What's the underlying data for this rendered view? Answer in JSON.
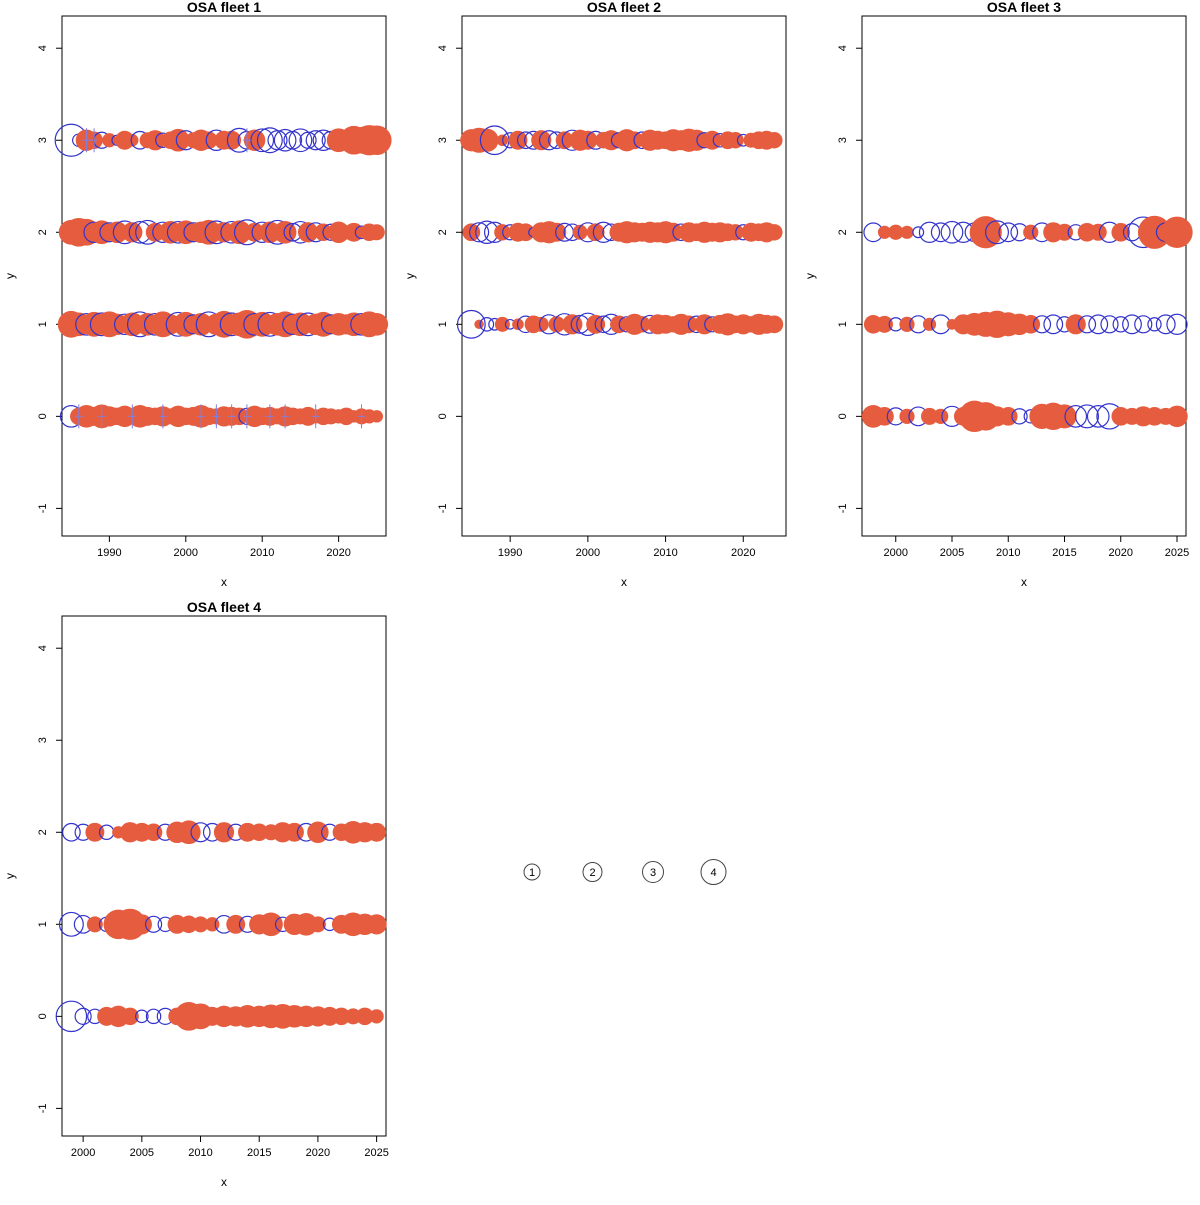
{
  "figure": {
    "background": "#ffffff",
    "colors": {
      "positive_fill": "#e65c3e",
      "negative_stroke": "#3333cc",
      "cross_color": "#8080e0",
      "axis_color": "#000000",
      "legend_stroke": "#444444"
    }
  },
  "chart_data": {
    "type": "scatter",
    "description": "Bubble plots of OSA residuals by fleet; filled circles positive residuals, open circles negative residuals; bubble area proportional to magnitude",
    "legend": {
      "items": [
        {
          "label": "1",
          "r": 8
        },
        {
          "label": "2",
          "r": 9.5
        },
        {
          "label": "3",
          "r": 10.5
        },
        {
          "label": "4",
          "r": 12.5
        }
      ]
    },
    "panels": [
      {
        "name": "osa-fleet-1",
        "title": "OSA fleet 1",
        "xlabel": "x",
        "ylabel": "y",
        "xlim": [
          1983.8,
          2026.2
        ],
        "xticks": [
          1990,
          2000,
          2010,
          2020
        ],
        "ylim": [
          -1.3,
          4.35
        ],
        "yticks": [
          -1,
          0,
          1,
          2,
          3,
          4
        ],
        "start_year": 1985,
        "max_radius": 16,
        "rows": [
          {
            "y": 3,
            "values": [
              -1.0,
              -0.15,
              0.45,
              0.3,
              -0.25,
              0.2,
              -0.1,
              0.35,
              0.15,
              -0.3,
              0.25,
              0.4,
              -0.2,
              0.3,
              0.5,
              -0.35,
              0.25,
              0.45,
              0.3,
              -0.4,
              0.35,
              0.35,
              -0.55,
              -0.3,
              0.45,
              -0.5,
              -0.6,
              -0.35,
              -0.45,
              -0.3,
              -0.5,
              -0.25,
              -0.35,
              -0.4,
              -0.3,
              0.55,
              0.4,
              0.8,
              0.7,
              0.9,
              0.85
            ],
            "crosses": [
              1987,
              1988,
              2008
            ]
          },
          {
            "y": 2,
            "values": [
              0.6,
              0.8,
              0.7,
              -0.4,
              0.55,
              -0.35,
              0.45,
              -0.5,
              0.4,
              -0.45,
              -0.55,
              0.35,
              -0.4,
              0.5,
              -0.45,
              0.55,
              -0.35,
              0.45,
              0.6,
              -0.5,
              0.4,
              -0.45,
              0.55,
              -0.6,
              0.35,
              -0.4,
              0.45,
              -0.55,
              0.5,
              -0.3,
              -0.45,
              0.4,
              -0.35,
              0.3,
              -0.25,
              0.45,
              0.2,
              0.35,
              -0.15,
              0.3,
              0.25
            ]
          },
          {
            "y": 1,
            "values": [
              0.7,
              0.55,
              -0.45,
              0.6,
              -0.5,
              0.65,
              0.45,
              -0.4,
              0.55,
              -0.6,
              0.5,
              -0.45,
              0.65,
              0.4,
              -0.55,
              0.6,
              -0.35,
              0.5,
              -0.6,
              0.45,
              0.7,
              -0.5,
              0.55,
              0.8,
              -0.45,
              0.6,
              -0.55,
              0.5,
              0.65,
              -0.4,
              0.55,
              -0.5,
              0.45,
              0.6,
              -0.35,
              0.5,
              0.4,
              0.55,
              -0.45,
              0.65,
              0.5
            ]
          },
          {
            "y": 0,
            "values": [
              -0.45,
              0.3,
              0.5,
              0.35,
              0.55,
              0.4,
              0.3,
              0.45,
              0.25,
              0.5,
              0.35,
              0.3,
              0.4,
              0.25,
              0.45,
              0.3,
              0.35,
              0.5,
              0.3,
              0.25,
              0.4,
              0.35,
              0.3,
              -0.25,
              0.45,
              0.3,
              0.35,
              0.25,
              0.4,
              0.3,
              0.25,
              0.35,
              0.2,
              0.3,
              0.25,
              0.2,
              0.3,
              0.15,
              0.25,
              0.2,
              0.15
            ],
            "crosses": [
              1986,
              1989,
              1993,
              1997,
              2002,
              2004,
              2006,
              2008,
              2011,
              2013,
              2017,
              2023
            ]
          }
        ]
      },
      {
        "name": "osa-fleet-2",
        "title": "OSA fleet 2",
        "xlabel": "x",
        "ylabel": "y",
        "xlim": [
          1983.8,
          2025.5
        ],
        "xticks": [
          1990,
          2000,
          2010,
          2020
        ],
        "ylim": [
          -1.3,
          4.35
        ],
        "yticks": [
          -1,
          0,
          1,
          2,
          3,
          4
        ],
        "start_year": 1985,
        "max_radius": 15,
        "rows": [
          {
            "y": 3,
            "values": [
              0.55,
              0.7,
              0.6,
              -0.9,
              0.15,
              -0.25,
              0.4,
              -0.3,
              -0.35,
              0.45,
              -0.4,
              -0.3,
              0.35,
              -0.45,
              0.5,
              0.4,
              -0.35,
              0.3,
              0.45,
              -0.25,
              0.55,
              0.35,
              -0.3,
              0.5,
              0.4,
              0.35,
              0.55,
              0.45,
              0.6,
              0.5,
              -0.25,
              0.4,
              -0.2,
              0.35,
              0.3,
              -0.15,
              0.25,
              0.35,
              0.4,
              0.3
            ]
          },
          {
            "y": 2,
            "values": [
              0.35,
              -0.4,
              -0.55,
              -0.45,
              0.3,
              -0.25,
              0.4,
              0.35,
              -0.1,
              0.45,
              0.55,
              0.4,
              -0.35,
              -0.3,
              0.25,
              -0.4,
              0.35,
              -0.45,
              -0.3,
              0.4,
              0.55,
              0.45,
              0.4,
              0.5,
              0.45,
              0.55,
              0.4,
              -0.3,
              0.45,
              0.35,
              0.5,
              0.4,
              0.45,
              0.35,
              0.3,
              -0.25,
              0.4,
              0.35,
              0.45,
              0.3
            ]
          },
          {
            "y": 1,
            "values": [
              -0.85,
              0.1,
              -0.2,
              -0.15,
              0.25,
              -0.1,
              0.15,
              -0.3,
              0.35,
              0.25,
              -0.4,
              0.3,
              -0.5,
              0.45,
              -0.35,
              -0.55,
              0.4,
              -0.3,
              -0.45,
              0.35,
              -0.25,
              0.5,
              0.3,
              -0.35,
              0.45,
              0.4,
              0.3,
              0.5,
              0.35,
              -0.3,
              0.45,
              -0.25,
              0.4,
              0.55,
              0.35,
              0.45,
              0.3,
              0.5,
              0.4,
              0.35
            ]
          }
        ]
      },
      {
        "name": "osa-fleet-3",
        "title": "OSA fleet 3",
        "xlabel": "x",
        "ylabel": "y",
        "xlim": [
          1997.0,
          2025.8
        ],
        "xticks": [
          2000,
          2005,
          2010,
          2015,
          2020,
          2025
        ],
        "ylim": [
          -1.3,
          4.35
        ],
        "yticks": [
          -1,
          0,
          1,
          2,
          3,
          4
        ],
        "start_year": 1998,
        "max_radius": 17,
        "rows": [
          {
            "y": 2,
            "values": [
              -0.3,
              0.15,
              0.2,
              0.15,
              -0.1,
              -0.35,
              -0.3,
              -0.4,
              -0.35,
              -0.3,
              0.9,
              -0.45,
              -0.3,
              -0.25,
              0.2,
              -0.3,
              0.35,
              0.25,
              -0.2,
              0.3,
              0.25,
              -0.35,
              0.3,
              -0.25,
              -0.8,
              0.95,
              -0.3,
              0.85
            ]
          },
          {
            "y": 1,
            "values": [
              0.3,
              0.25,
              -0.15,
              0.2,
              -0.25,
              0.15,
              -0.3,
              0.1,
              0.35,
              0.45,
              0.55,
              0.65,
              0.5,
              0.4,
              0.3,
              -0.25,
              -0.3,
              -0.2,
              0.35,
              -0.25,
              -0.3,
              -0.25,
              -0.2,
              -0.3,
              -0.25,
              -0.15,
              -0.3,
              -0.35
            ]
          },
          {
            "y": 0,
            "values": [
              0.45,
              0.3,
              -0.25,
              0.2,
              -0.3,
              0.25,
              0.2,
              -0.35,
              0.3,
              0.85,
              0.7,
              0.35,
              0.3,
              -0.2,
              -0.15,
              0.55,
              0.65,
              0.5,
              -0.4,
              -0.45,
              -0.4,
              -0.55,
              0.3,
              0.25,
              0.35,
              0.3,
              0.25,
              0.4
            ]
          }
        ]
      },
      {
        "name": "osa-fleet-4",
        "title": "OSA fleet 4",
        "xlabel": "x",
        "ylabel": "y",
        "xlim": [
          1998.2,
          2025.8
        ],
        "xticks": [
          2000,
          2005,
          2010,
          2015,
          2020,
          2025
        ],
        "ylim": [
          -1.3,
          4.35
        ],
        "yticks": [
          -1,
          0,
          1,
          2,
          3,
          4
        ],
        "start_year": 1999,
        "max_radius": 16,
        "rows": [
          {
            "y": 2,
            "values": [
              -0.3,
              -0.25,
              0.35,
              -0.2,
              0.15,
              0.4,
              0.35,
              0.3,
              -0.25,
              0.45,
              0.55,
              -0.35,
              -0.3,
              0.4,
              -0.25,
              0.35,
              0.3,
              0.25,
              0.4,
              0.35,
              -0.3,
              0.45,
              -0.25,
              0.3,
              0.5,
              0.4,
              0.35
            ]
          },
          {
            "y": 1,
            "values": [
              -0.55,
              -0.3,
              0.25,
              -0.2,
              0.85,
              0.95,
              0.4,
              -0.25,
              -0.2,
              0.35,
              0.3,
              0.25,
              0.2,
              -0.3,
              0.35,
              -0.25,
              0.4,
              0.55,
              -0.2,
              0.45,
              0.5,
              0.25,
              -0.15,
              0.35,
              0.55,
              0.45,
              0.4
            ]
          },
          {
            "y": 0,
            "values": [
              -0.9,
              -0.25,
              -0.2,
              0.35,
              0.45,
              0.3,
              -0.15,
              -0.2,
              -0.25,
              0.3,
              0.8,
              0.65,
              0.35,
              0.45,
              0.4,
              0.5,
              0.45,
              0.55,
              0.6,
              0.5,
              0.45,
              0.4,
              0.35,
              0.3,
              0.25,
              0.3,
              0.2
            ]
          }
        ]
      }
    ]
  }
}
